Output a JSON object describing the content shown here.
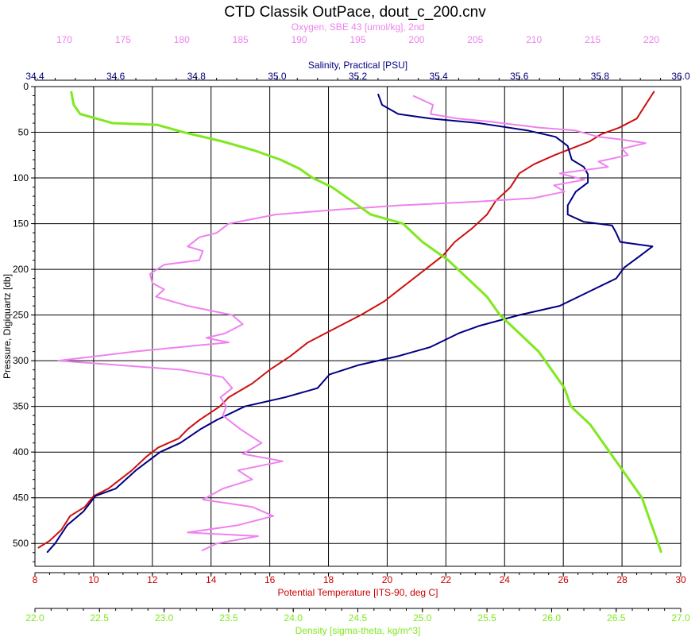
{
  "chart_data": {
    "type": "line",
    "title": "CTD Classik OutPace, dout_c_200.cnv",
    "y_axis": {
      "label": "Pressure, Digiquartz [db]",
      "range": [
        0,
        525
      ],
      "inverted": true,
      "ticks": [
        0,
        50,
        100,
        150,
        200,
        250,
        300,
        350,
        400,
        450,
        500
      ],
      "color": "#000000"
    },
    "x_axes": [
      {
        "id": "oxygen",
        "label": "Oxygen, SBE 43 [umol/kg], 2nd",
        "position": "top",
        "range": [
          167.5,
          222.5
        ],
        "ticks": [
          170,
          175,
          180,
          185,
          190,
          195,
          200,
          205,
          210,
          215,
          220
        ],
        "tick_format": "0",
        "color": "#ee82ee"
      },
      {
        "id": "salinity",
        "label": "Salinity, Practical [PSU]",
        "position": "top",
        "range": [
          34.4,
          36.0
        ],
        "ticks": [
          34.4,
          34.6,
          34.8,
          35.0,
          35.2,
          35.4,
          35.6,
          35.8,
          36.0
        ],
        "tick_format": "1",
        "color": "#000080"
      },
      {
        "id": "temperature",
        "label": "Potential Temperature [ITS-90, deg C]",
        "position": "bottom",
        "range": [
          8,
          30
        ],
        "ticks": [
          8,
          10,
          12,
          14,
          16,
          18,
          20,
          22,
          24,
          26,
          28,
          30
        ],
        "tick_format": "0",
        "color": "#cc0000"
      },
      {
        "id": "density",
        "label": "Density [sigma-theta, kg/m^3]",
        "position": "bottom",
        "range": [
          22.0,
          27.0
        ],
        "ticks": [
          22.0,
          22.5,
          23.0,
          23.5,
          24.0,
          24.5,
          25.0,
          25.5,
          26.0,
          26.5,
          27.0
        ],
        "tick_format": "1",
        "color": "#80e820"
      }
    ],
    "grid": true,
    "legend": "none",
    "series": [
      {
        "axis": "temperature",
        "color": "#cc1111",
        "points": [
          [
            29.1,
            5
          ],
          [
            28.9,
            15
          ],
          [
            28.5,
            35
          ],
          [
            27.9,
            45
          ],
          [
            27.3,
            52
          ],
          [
            26.9,
            60
          ],
          [
            26.5,
            65
          ],
          [
            25.7,
            75
          ],
          [
            25.0,
            85
          ],
          [
            24.5,
            95
          ],
          [
            24.2,
            110
          ],
          [
            23.7,
            125
          ],
          [
            23.4,
            140
          ],
          [
            22.9,
            155
          ],
          [
            22.3,
            170
          ],
          [
            21.9,
            185
          ],
          [
            21.3,
            200
          ],
          [
            20.5,
            220
          ],
          [
            19.9,
            235
          ],
          [
            19.1,
            250
          ],
          [
            18.2,
            265
          ],
          [
            17.3,
            280
          ],
          [
            16.7,
            295
          ],
          [
            16.0,
            310
          ],
          [
            15.4,
            325
          ],
          [
            14.6,
            340
          ],
          [
            14.3,
            350
          ],
          [
            13.6,
            365
          ],
          [
            13.2,
            375
          ],
          [
            12.9,
            385
          ],
          [
            12.2,
            395
          ],
          [
            11.8,
            405
          ],
          [
            11.3,
            420
          ],
          [
            10.9,
            430
          ],
          [
            10.5,
            440
          ],
          [
            10.0,
            448
          ],
          [
            9.7,
            460
          ],
          [
            9.2,
            470
          ],
          [
            8.9,
            485
          ],
          [
            8.5,
            497
          ],
          [
            8.1,
            505
          ]
        ]
      },
      {
        "axis": "salinity",
        "color": "#000080",
        "points": [
          [
            35.25,
            8
          ],
          [
            35.26,
            20
          ],
          [
            35.3,
            30
          ],
          [
            35.38,
            35
          ],
          [
            35.5,
            40
          ],
          [
            35.62,
            48
          ],
          [
            35.69,
            55
          ],
          [
            35.72,
            65
          ],
          [
            35.73,
            80
          ],
          [
            35.76,
            88
          ],
          [
            35.77,
            96
          ],
          [
            35.77,
            105
          ],
          [
            35.74,
            115
          ],
          [
            35.72,
            130
          ],
          [
            35.72,
            140
          ],
          [
            35.76,
            148
          ],
          [
            35.83,
            152
          ],
          [
            35.84,
            160
          ],
          [
            35.85,
            170
          ],
          [
            35.93,
            175
          ],
          [
            35.9,
            185
          ],
          [
            35.86,
            198
          ],
          [
            35.84,
            210
          ],
          [
            35.77,
            225
          ],
          [
            35.7,
            240
          ],
          [
            35.6,
            250
          ],
          [
            35.5,
            262
          ],
          [
            35.45,
            270
          ],
          [
            35.38,
            285
          ],
          [
            35.3,
            295
          ],
          [
            35.2,
            305
          ],
          [
            35.13,
            315
          ],
          [
            35.1,
            330
          ],
          [
            35.02,
            340
          ],
          [
            34.92,
            350
          ],
          [
            34.85,
            365
          ],
          [
            34.81,
            375
          ],
          [
            34.76,
            390
          ],
          [
            34.71,
            400
          ],
          [
            34.65,
            420
          ],
          [
            34.6,
            440
          ],
          [
            34.55,
            448
          ],
          [
            34.52,
            465
          ],
          [
            34.48,
            480
          ],
          [
            34.45,
            500
          ],
          [
            34.43,
            510
          ]
        ]
      },
      {
        "axis": "oxygen",
        "color": "#ee82ee",
        "points": [
          [
            199.7,
            10
          ],
          [
            201.4,
            20
          ],
          [
            201.2,
            30
          ],
          [
            203.5,
            35
          ],
          [
            206,
            38
          ],
          [
            210.5,
            45
          ],
          [
            213.5,
            48
          ],
          [
            215.5,
            55
          ],
          [
            217.5,
            58
          ],
          [
            219.5,
            62
          ],
          [
            217.5,
            68
          ],
          [
            218,
            75
          ],
          [
            215.5,
            82
          ],
          [
            216.3,
            88
          ],
          [
            212.2,
            95
          ],
          [
            214.3,
            102
          ],
          [
            211.7,
            108
          ],
          [
            212.6,
            115
          ],
          [
            210,
            122
          ],
          [
            205,
            126
          ],
          [
            198.5,
            130
          ],
          [
            193,
            135
          ],
          [
            188,
            140
          ],
          [
            184,
            150
          ],
          [
            183,
            160
          ],
          [
            181.5,
            165
          ],
          [
            180.5,
            175
          ],
          [
            181.8,
            180
          ],
          [
            181.5,
            190
          ],
          [
            178.5,
            195
          ],
          [
            177.3,
            205
          ],
          [
            177.5,
            215
          ],
          [
            178.5,
            222
          ],
          [
            177.8,
            230
          ],
          [
            180.5,
            240
          ],
          [
            184.3,
            250
          ],
          [
            185.2,
            260
          ],
          [
            183.7,
            270
          ],
          [
            182.1,
            275
          ],
          [
            184,
            280
          ],
          [
            176,
            290
          ],
          [
            169.5,
            300
          ],
          [
            180,
            310
          ],
          [
            183.5,
            318
          ],
          [
            184.3,
            330
          ],
          [
            183.3,
            340
          ],
          [
            183.8,
            350
          ],
          [
            183.5,
            360
          ],
          [
            185,
            375
          ],
          [
            186.8,
            390
          ],
          [
            185.2,
            402
          ],
          [
            188.6,
            410
          ],
          [
            184.8,
            420
          ],
          [
            186,
            430
          ],
          [
            183.5,
            440
          ],
          [
            181.8,
            452
          ],
          [
            186,
            460
          ],
          [
            187.8,
            470
          ],
          [
            184.8,
            480
          ],
          [
            180.5,
            488
          ],
          [
            186.5,
            492
          ],
          [
            183,
            500
          ],
          [
            181.7,
            508
          ]
        ]
      },
      {
        "axis": "density",
        "color": "#80e820",
        "points": [
          [
            22.28,
            5
          ],
          [
            22.3,
            20
          ],
          [
            22.35,
            30
          ],
          [
            22.6,
            40
          ],
          [
            22.95,
            42
          ],
          [
            23.15,
            50
          ],
          [
            23.45,
            60
          ],
          [
            23.7,
            70
          ],
          [
            23.9,
            80
          ],
          [
            24.05,
            90
          ],
          [
            24.15,
            100
          ],
          [
            24.3,
            110
          ],
          [
            24.45,
            125
          ],
          [
            24.6,
            140
          ],
          [
            24.85,
            150
          ],
          [
            25.0,
            170
          ],
          [
            25.2,
            190
          ],
          [
            25.35,
            210
          ],
          [
            25.5,
            230
          ],
          [
            25.6,
            250
          ],
          [
            25.75,
            270
          ],
          [
            25.9,
            290
          ],
          [
            26.0,
            310
          ],
          [
            26.1,
            330
          ],
          [
            26.15,
            350
          ],
          [
            26.3,
            370
          ],
          [
            26.4,
            390
          ],
          [
            26.5,
            410
          ],
          [
            26.6,
            430
          ],
          [
            26.7,
            450
          ],
          [
            26.75,
            470
          ],
          [
            26.8,
            490
          ],
          [
            26.85,
            510
          ]
        ]
      }
    ]
  }
}
